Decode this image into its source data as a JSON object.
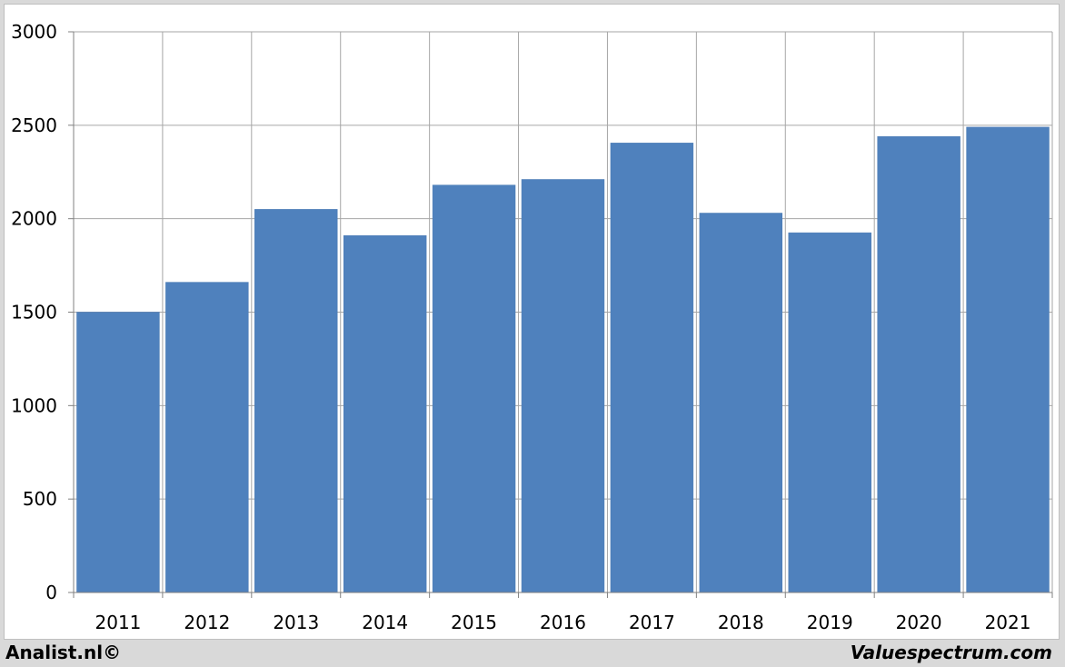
{
  "chart_data": {
    "type": "bar",
    "title": "",
    "xlabel": "",
    "ylabel": "",
    "categories": [
      "2011",
      "2012",
      "2013",
      "2014",
      "2015",
      "2016",
      "2017",
      "2018",
      "2019",
      "2020",
      "2021"
    ],
    "values": [
      1500,
      1660,
      2050,
      1910,
      2180,
      2210,
      2405,
      2030,
      1925,
      2440,
      2490
    ],
    "ylim": [
      0,
      3000
    ],
    "yticks": [
      "0",
      "500",
      "1000",
      "1500",
      "2000",
      "2500",
      "3000"
    ],
    "grid": true,
    "legend": "none",
    "bar_color": "#4f81bd",
    "grid_color": "#a6a6a6"
  },
  "footer": {
    "left": "Analist.nl©",
    "right": "Valuespectrum.com"
  }
}
